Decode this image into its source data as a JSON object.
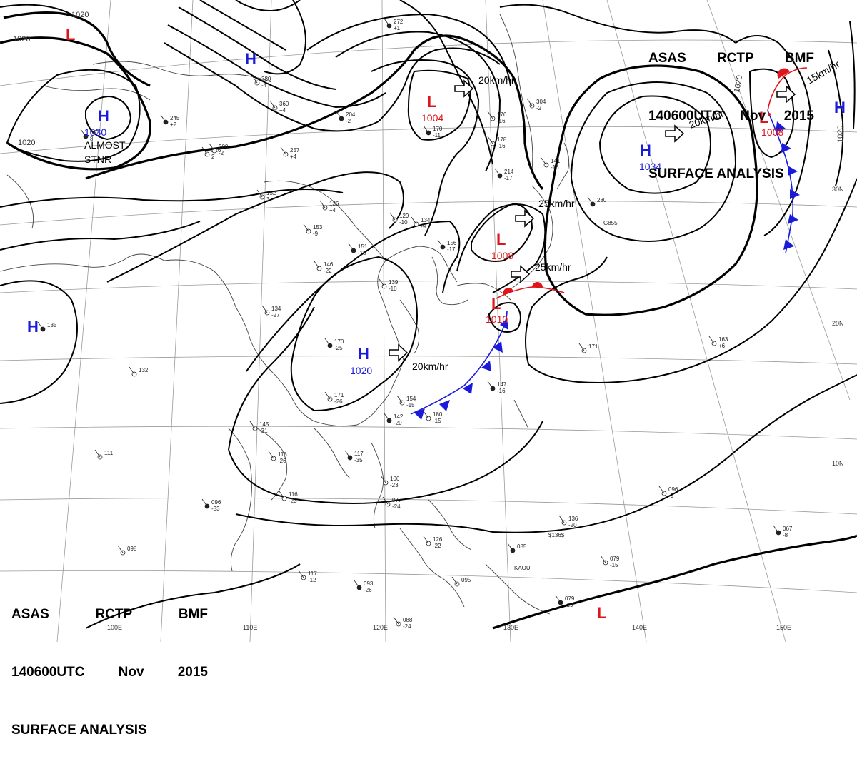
{
  "header": {
    "line1": [
      "ASAS",
      "RCTP",
      "BMF"
    ],
    "line2": [
      "140600UTC",
      "Nov",
      "2015"
    ],
    "line3": "SURFACE ANALYSIS"
  },
  "colors": {
    "high": "#1a1adb",
    "low": "#e0151b",
    "front": "#1a1adb",
    "warm": "#e0151b"
  },
  "pressure_centers": [
    {
      "type": "H",
      "value": "1030"
    },
    {
      "type": "H",
      "value": "1020"
    },
    {
      "type": "H",
      "value": "1034"
    },
    {
      "type": "H",
      "value": ""
    },
    {
      "type": "H",
      "value": ""
    },
    {
      "type": "H",
      "value": ""
    },
    {
      "type": "L",
      "value": "1004"
    },
    {
      "type": "L",
      "value": "1008"
    },
    {
      "type": "L",
      "value": "1010"
    },
    {
      "type": "L",
      "value": "1008"
    },
    {
      "type": "L",
      "value": ""
    },
    {
      "type": "L",
      "value": ""
    }
  ],
  "motion_labels": [
    "20km/hr",
    "25km/hr",
    "25km/hr",
    "20km/hr",
    "20km/hr",
    "15km/hr"
  ],
  "isobar_labels": [
    "1020",
    "1020",
    "1020",
    "1020",
    "1020"
  ],
  "annotation": [
    "ALMOST",
    "STNR"
  ],
  "lat_labels": [
    "30N",
    "20N",
    "10N"
  ],
  "lon_labels": [
    "100E",
    "110E",
    "120E",
    "130E",
    "140E",
    "150E"
  ],
  "stations": [
    {
      "t": "272",
      "p": "+1"
    },
    {
      "t": "380",
      "p": "-4"
    },
    {
      "t": "360",
      "p": "+4"
    },
    {
      "t": "245",
      "p": "+2"
    },
    {
      "t": "216",
      "p": "2"
    },
    {
      "t": "257",
      "p": "+4"
    },
    {
      "t": "204",
      "p": "-2"
    },
    {
      "t": "152",
      "p": "3"
    },
    {
      "t": "136",
      "p": "+4"
    },
    {
      "t": "170",
      "p": "-11"
    },
    {
      "t": "176",
      "p": "-16"
    },
    {
      "t": "178",
      "p": "-16"
    },
    {
      "t": "214",
      "p": "-17"
    },
    {
      "t": "304",
      "p": "-2"
    },
    {
      "t": "141",
      "p": "-16"
    },
    {
      "t": "280",
      "p": ""
    },
    {
      "t": "153",
      "p": "-9"
    },
    {
      "t": "146",
      "p": "-22"
    },
    {
      "t": "151",
      "p": "-15"
    },
    {
      "t": "129",
      "p": "-10"
    },
    {
      "t": "134",
      "p": "-9"
    },
    {
      "t": "156",
      "p": "-17"
    },
    {
      "t": "139",
      "p": "-10"
    },
    {
      "t": "134",
      "p": "-27"
    },
    {
      "t": "170",
      "p": "-25"
    },
    {
      "t": "171",
      "p": "-26"
    },
    {
      "t": "154",
      "p": "-15"
    },
    {
      "t": "147",
      "p": "-16"
    },
    {
      "t": "145",
      "p": "-31"
    },
    {
      "t": "118",
      "p": "-26"
    },
    {
      "t": "117",
      "p": "-35"
    },
    {
      "t": "106",
      "p": "-23"
    },
    {
      "t": "077",
      "p": "-24"
    },
    {
      "t": "096",
      "p": "-33"
    },
    {
      "t": "116",
      "p": "-23"
    },
    {
      "t": "136",
      "p": "-20"
    },
    {
      "t": "085",
      "p": ""
    },
    {
      "t": "079",
      "p": "-15"
    },
    {
      "t": "096",
      "p": "-9"
    },
    {
      "t": "067",
      "p": "-8"
    },
    {
      "t": "126",
      "p": "-22"
    },
    {
      "t": "095",
      "p": ""
    },
    {
      "t": "093",
      "p": "-26"
    },
    {
      "t": "117",
      "p": "-12"
    },
    {
      "t": "088",
      "p": "-24"
    },
    {
      "t": "079",
      "p": "-19"
    },
    {
      "t": "098",
      "p": ""
    },
    {
      "t": "132",
      "p": ""
    },
    {
      "t": "135",
      "p": ""
    },
    {
      "t": "171",
      "p": ""
    },
    {
      "t": "163",
      "p": "+6"
    },
    {
      "t": "092",
      "p": "8"
    },
    {
      "t": "200",
      "p": "-2"
    },
    {
      "t": "111",
      "p": ""
    },
    {
      "t": "142",
      "p": "-20"
    },
    {
      "t": "180",
      "p": "-15"
    }
  ],
  "place_labels": [
    "G855",
    "KAOU",
    "$136$"
  ]
}
